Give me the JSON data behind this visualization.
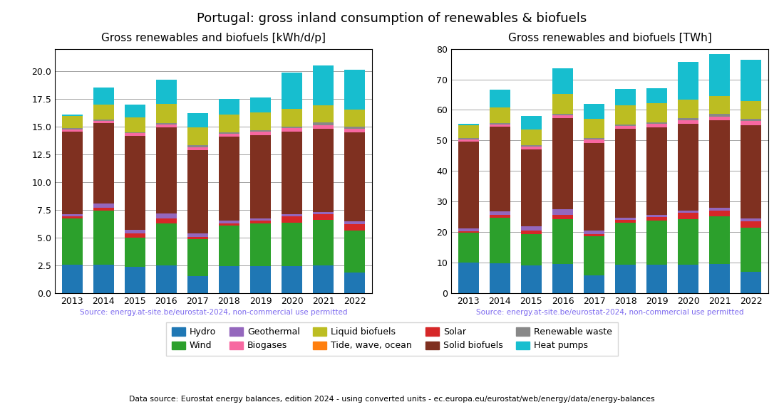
{
  "title": "Portugal: gross inland consumption of renewables & biofuels",
  "subtitle_left": "Gross renewables and biofuels [kWh/d/p]",
  "subtitle_right": "Gross renewables and biofuels [TWh]",
  "source_text": "Source: energy.at-site.be/eurostat-2024, non-commercial use permitted",
  "footer_text": "Data source: Eurostat energy balances, edition 2024 - using converted units - ec.europa.eu/eurostat/web/energy/data/energy-balances",
  "years": [
    2013,
    2014,
    2015,
    2016,
    2017,
    2018,
    2019,
    2020,
    2021,
    2022
  ],
  "categories": [
    "Hydro",
    "Wind",
    "Tide, wave, ocean",
    "Solar",
    "Geothermal",
    "Solid biofuels",
    "Biogases",
    "Renewable waste",
    "Liquid biofuels",
    "Heat pumps"
  ],
  "colors": [
    "#1f77b4",
    "#2ca02c",
    "#ff7f0e",
    "#d62728",
    "#9467bd",
    "#7f3020",
    "#f768a1",
    "#888888",
    "#bcbd22",
    "#17becf"
  ],
  "legend_order": [
    [
      "Hydro",
      "Wind",
      "Geothermal",
      "Biogases",
      "Liquid biofuels"
    ],
    [
      "Tide, wave, ocean",
      "Solar",
      "Solid biofuels",
      "Renewable waste",
      "Heat pumps"
    ]
  ],
  "data_kwh": {
    "Hydro": [
      2.55,
      2.55,
      2.35,
      2.5,
      1.55,
      2.45,
      2.45,
      2.45,
      2.5,
      1.85
    ],
    "Wind": [
      4.2,
      4.9,
      2.65,
      3.8,
      3.3,
      3.6,
      3.8,
      3.9,
      4.1,
      3.8
    ],
    "Tide, wave, ocean": [
      0.0,
      0.0,
      0.0,
      0.0,
      0.0,
      0.0,
      0.0,
      0.0,
      0.0,
      0.0
    ],
    "Solar": [
      0.15,
      0.25,
      0.35,
      0.4,
      0.2,
      0.25,
      0.3,
      0.55,
      0.5,
      0.55
    ],
    "Geothermal": [
      0.2,
      0.35,
      0.35,
      0.45,
      0.3,
      0.2,
      0.2,
      0.2,
      0.2,
      0.25
    ],
    "Solid biofuels": [
      7.45,
      7.25,
      8.45,
      7.8,
      7.55,
      7.6,
      7.5,
      7.45,
      7.5,
      8.0
    ],
    "Biogases": [
      0.2,
      0.2,
      0.25,
      0.25,
      0.25,
      0.25,
      0.3,
      0.3,
      0.35,
      0.35
    ],
    "Renewable waste": [
      0.1,
      0.1,
      0.1,
      0.1,
      0.15,
      0.15,
      0.15,
      0.15,
      0.2,
      0.2
    ],
    "Liquid biofuels": [
      1.1,
      1.35,
      1.35,
      1.75,
      1.65,
      1.6,
      1.6,
      1.6,
      1.55,
      1.55
    ],
    "Heat pumps": [
      0.1,
      1.55,
      1.1,
      2.15,
      1.25,
      1.4,
      1.3,
      3.25,
      3.6,
      3.55
    ]
  },
  "data_twh": {
    "Hydro": [
      9.9,
      9.8,
      9.0,
      9.6,
      5.9,
      9.3,
      9.3,
      9.3,
      9.5,
      7.0
    ],
    "Wind": [
      9.8,
      14.8,
      10.2,
      14.6,
      12.7,
      13.7,
      14.5,
      14.9,
      15.7,
      14.5
    ],
    "Tide, wave, ocean": [
      0.0,
      0.0,
      0.0,
      0.0,
      0.0,
      0.0,
      0.0,
      0.0,
      0.0,
      0.0
    ],
    "Solar": [
      0.6,
      0.9,
      1.3,
      1.5,
      0.7,
      0.9,
      1.1,
      2.1,
      1.9,
      2.1
    ],
    "Geothermal": [
      0.8,
      1.3,
      1.3,
      1.7,
      1.1,
      0.8,
      0.8,
      0.8,
      0.8,
      0.9
    ],
    "Solid biofuels": [
      28.5,
      27.7,
      25.3,
      29.9,
      28.8,
      29.0,
      28.6,
      28.4,
      28.6,
      30.5
    ],
    "Biogases": [
      0.8,
      0.8,
      0.9,
      0.9,
      1.0,
      1.0,
      1.1,
      1.1,
      1.3,
      1.3
    ],
    "Renewable waste": [
      0.4,
      0.4,
      0.4,
      0.4,
      0.6,
      0.6,
      0.6,
      0.6,
      0.8,
      0.8
    ],
    "Liquid biofuels": [
      4.2,
      5.1,
      5.2,
      6.7,
      6.3,
      6.1,
      6.1,
      6.1,
      5.9,
      5.9
    ],
    "Heat pumps": [
      0.4,
      5.9,
      4.3,
      8.3,
      4.8,
      5.4,
      5.0,
      12.4,
      13.7,
      13.5
    ]
  },
  "ylim_kwh": [
    0,
    22
  ],
  "ylim_twh": [
    0,
    80
  ],
  "yticks_kwh": [
    0.0,
    2.5,
    5.0,
    7.5,
    10.0,
    12.5,
    15.0,
    17.5,
    20.0
  ],
  "yticks_twh": [
    0,
    10,
    20,
    30,
    40,
    50,
    60,
    70,
    80
  ],
  "source_color": "#7b68ee",
  "bar_width": 0.65
}
